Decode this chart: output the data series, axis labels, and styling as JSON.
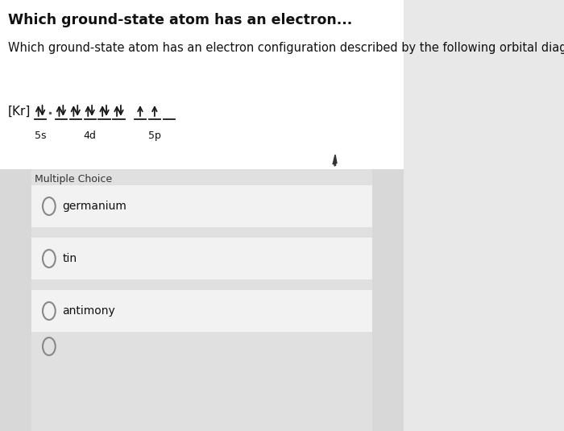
{
  "title": "Which ground-state atom has an electron...",
  "question": "Which ground-state atom has an electron configuration described by the following orbital diagram?",
  "title_fontsize": 12.5,
  "question_fontsize": 10.5,
  "bg_color": "#e8e8e8",
  "white_bg": "#ffffff",
  "top_bg": "#f5f5f5",
  "mc_label": "Multiple Choice",
  "choices": [
    "germanium",
    "tin",
    "antimony"
  ],
  "orbital_label_kr": "[Kr]",
  "orbital_label_5s": "5s",
  "orbital_label_4d": "4d",
  "orbital_label_5p": "5p",
  "arrow_color": "#1a1a1a"
}
